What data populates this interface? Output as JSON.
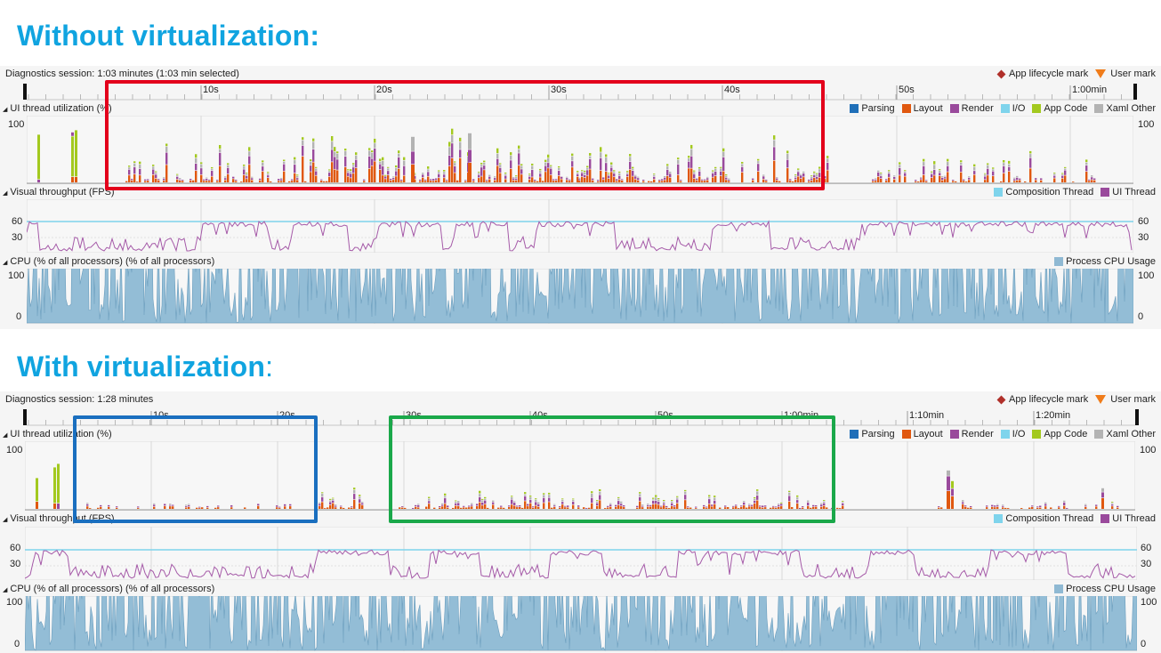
{
  "sections": [
    {
      "heading": "Without virtualization:",
      "session_label": "Diagnostics session: 1:03 minutes (1:03 min selected)",
      "markers": [
        {
          "label": "App lifecycle mark",
          "icon": "diamond-icon",
          "color": "#b0302a"
        },
        {
          "label": "User mark",
          "icon": "triangle-icon",
          "color": "#f07c1a"
        }
      ],
      "ruler_ticks": [
        "10s",
        "20s",
        "30s",
        "40s",
        "50s",
        "1:00min"
      ],
      "ui_thread_label": "UI thread utilization (%)",
      "ui_legend": [
        {
          "label": "Parsing",
          "color": "#1f6fb8"
        },
        {
          "label": "Layout",
          "color": "#e0580f"
        },
        {
          "label": "Render",
          "color": "#9a4a9c"
        },
        {
          "label": "I/O",
          "color": "#7fd4ec"
        },
        {
          "label": "App Code",
          "color": "#a3c91f"
        },
        {
          "label": "Xaml Other",
          "color": "#b3b3b3"
        }
      ],
      "ui_axis": {
        "top": "100",
        "right_top": "100"
      },
      "fps_label": "Visual throughput (FPS)",
      "fps_legend": [
        {
          "label": "Composition Thread",
          "color": "#7fd4ec"
        },
        {
          "label": "UI Thread",
          "color": "#9a4a9c"
        }
      ],
      "fps_axis": {
        "hi": "60",
        "lo": "30"
      },
      "cpu_label": "CPU (% of all processors) (% of all processors)",
      "cpu_legend": [
        {
          "label": "Process CPU Usage",
          "color": "#8fb9d3"
        }
      ],
      "cpu_axis": {
        "top": "100",
        "bottom": "0"
      },
      "highlight_colors": [
        "#e3001b"
      ]
    },
    {
      "heading": "With virtualization",
      "heading_suffix": ":",
      "session_label": "Diagnostics session: 1:28 minutes",
      "markers": [
        {
          "label": "App lifecycle mark",
          "icon": "diamond-icon",
          "color": "#b0302a"
        },
        {
          "label": "User mark",
          "icon": "triangle-icon",
          "color": "#f07c1a"
        }
      ],
      "ruler_ticks": [
        "10s",
        "20s",
        "30s",
        "40s",
        "50s",
        "1:00min",
        "1:10min",
        "1:20min"
      ],
      "ui_thread_label": "UI thread utilization (%)",
      "ui_legend": [
        {
          "label": "Parsing",
          "color": "#1f6fb8"
        },
        {
          "label": "Layout",
          "color": "#e0580f"
        },
        {
          "label": "Render",
          "color": "#9a4a9c"
        },
        {
          "label": "I/O",
          "color": "#7fd4ec"
        },
        {
          "label": "App Code",
          "color": "#a3c91f"
        },
        {
          "label": "Xaml Other",
          "color": "#b3b3b3"
        }
      ],
      "ui_axis": {
        "top": "100",
        "right_top": "100"
      },
      "fps_label": "Visual throughput (FPS)",
      "fps_legend": [
        {
          "label": "Composition Thread",
          "color": "#7fd4ec"
        },
        {
          "label": "UI Thread",
          "color": "#9a4a9c"
        }
      ],
      "fps_axis": {
        "hi": "60",
        "lo": "30"
      },
      "cpu_label": "CPU (% of all processors) (% of all processors)",
      "cpu_legend": [
        {
          "label": "Process CPU Usage",
          "color": "#8fb9d3"
        }
      ],
      "cpu_axis": {
        "top": "100",
        "bottom": "0"
      },
      "highlight_colors": [
        "#1a6fbf",
        "#1aa84a"
      ]
    }
  ]
}
